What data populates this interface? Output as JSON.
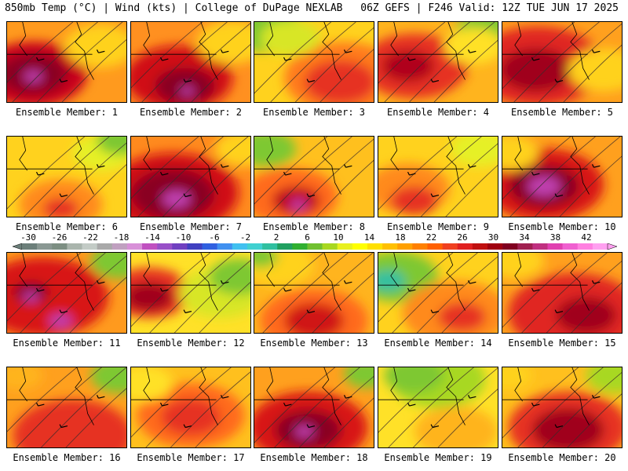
{
  "header": {
    "left": "850mb Temp (°C) | Wind (kts) | College of DuPage NEXLAB",
    "right": "06Z GEFS | F246 Valid: 12Z TUE JUN 17 2025"
  },
  "colorbar": {
    "labels": [
      "-30",
      "-26",
      "-22",
      "-18",
      "-14",
      "-10",
      "-6",
      "-2",
      "2",
      "6",
      "10",
      "14",
      "18",
      "22",
      "26",
      "30",
      "34",
      "38",
      "42"
    ],
    "colors": [
      "#6c7f7a",
      "#8a9893",
      "#7d8f83",
      "#aab5ad",
      "#c3cbc6",
      "#a9a9a9",
      "#c0a0c0",
      "#d890d8",
      "#c050c0",
      "#9850c8",
      "#7040c0",
      "#4040c0",
      "#3060e0",
      "#4090f0",
      "#40c0f0",
      "#40d0d0",
      "#30c0a0",
      "#20a060",
      "#30b030",
      "#70c030",
      "#a8d820",
      "#e8f020",
      "#ffff00",
      "#ffe000",
      "#ffc000",
      "#ffa000",
      "#ff8000",
      "#ff6000",
      "#f04020",
      "#e02020",
      "#c01010",
      "#a00010",
      "#800020",
      "#a02050",
      "#c03080",
      "#e040b0",
      "#f060d0",
      "#ff80e0",
      "#ffa0f0"
    ]
  },
  "members": [
    {
      "label": "Ensemble Member: 1",
      "base": "#ff9a1e",
      "hot": [
        [
          0.22,
          0.65,
          0.45,
          "#c8001a"
        ],
        [
          0.22,
          0.65,
          0.28,
          "#8a0020"
        ],
        [
          0.22,
          0.68,
          0.08,
          "#c040b0"
        ],
        [
          0.78,
          0.3,
          0.3,
          "#ffd21e"
        ]
      ]
    },
    {
      "label": "Ensemble Member: 2",
      "base": "#ff9020",
      "hot": [
        [
          0.4,
          0.7,
          0.45,
          "#d01018"
        ],
        [
          0.45,
          0.8,
          0.25,
          "#8a0020"
        ],
        [
          0.47,
          0.86,
          0.06,
          "#c040b0"
        ],
        [
          0.85,
          0.25,
          0.3,
          "#ffd21e"
        ]
      ]
    },
    {
      "label": "Ensemble Member: 3",
      "base": "#ffd21e",
      "hot": [
        [
          0.75,
          0.7,
          0.5,
          "#ff7a1e"
        ],
        [
          0.72,
          0.75,
          0.3,
          "#e63020"
        ],
        [
          0.1,
          0.1,
          0.3,
          "#7ec832"
        ],
        [
          0.3,
          0.2,
          0.25,
          "#d8e628"
        ]
      ]
    },
    {
      "label": "Ensemble Member: 4",
      "base": "#ffb41e",
      "hot": [
        [
          0.3,
          0.55,
          0.45,
          "#e63020"
        ],
        [
          0.25,
          0.55,
          0.22,
          "#b0001c"
        ],
        [
          0.9,
          0.1,
          0.25,
          "#7ec832"
        ],
        [
          0.8,
          0.3,
          0.25,
          "#ffe128"
        ]
      ]
    },
    {
      "label": "Ensemble Member: 5",
      "base": "#ffa01e",
      "hot": [
        [
          0.3,
          0.55,
          0.55,
          "#e02820"
        ],
        [
          0.28,
          0.6,
          0.3,
          "#a0001c"
        ],
        [
          0.85,
          0.6,
          0.3,
          "#ffd21e"
        ]
      ]
    },
    {
      "label": "Ensemble Member: 6",
      "base": "#ffd21e",
      "hot": [
        [
          0.45,
          0.85,
          0.35,
          "#ff8a1e"
        ],
        [
          0.45,
          0.9,
          0.15,
          "#e63020"
        ],
        [
          0.8,
          0.2,
          0.25,
          "#e6f028"
        ],
        [
          0.95,
          0.05,
          0.2,
          "#7ec832"
        ]
      ]
    },
    {
      "label": "Ensemble Member: 7",
      "base": "#ff8a1e",
      "hot": [
        [
          0.35,
          0.7,
          0.55,
          "#d01018"
        ],
        [
          0.35,
          0.72,
          0.35,
          "#8a0020"
        ],
        [
          0.38,
          0.78,
          0.12,
          "#c040b0"
        ],
        [
          0.95,
          0.15,
          0.25,
          "#ffd21e"
        ]
      ]
    },
    {
      "label": "Ensemble Member: 8",
      "base": "#ffc01e",
      "hot": [
        [
          0.3,
          0.75,
          0.4,
          "#ff6a1e"
        ],
        [
          0.35,
          0.8,
          0.2,
          "#c0001c"
        ],
        [
          0.37,
          0.85,
          0.07,
          "#c040b0"
        ],
        [
          0.1,
          0.15,
          0.25,
          "#7ec832"
        ]
      ]
    },
    {
      "label": "Ensemble Member: 9",
      "base": "#ffd21e",
      "hot": [
        [
          0.25,
          0.65,
          0.35,
          "#ff8a1e"
        ],
        [
          0.3,
          0.8,
          0.2,
          "#e63020"
        ],
        [
          0.85,
          0.15,
          0.25,
          "#e6f028"
        ]
      ]
    },
    {
      "label": "Ensemble Member: 10",
      "base": "#ffa01e",
      "hot": [
        [
          0.35,
          0.6,
          0.5,
          "#d81818"
        ],
        [
          0.35,
          0.62,
          0.3,
          "#8a0020"
        ],
        [
          0.35,
          0.62,
          0.14,
          "#c040b0"
        ],
        [
          0.05,
          0.2,
          0.25,
          "#ffd21e"
        ]
      ]
    },
    {
      "label": "Ensemble Member: 11",
      "base": "#ff9a1e",
      "hot": [
        [
          0.3,
          0.55,
          0.55,
          "#d81818"
        ],
        [
          0.2,
          0.5,
          0.15,
          "#8a0020"
        ],
        [
          0.2,
          0.55,
          0.07,
          "#c040b0"
        ],
        [
          0.45,
          0.85,
          0.1,
          "#c040b0"
        ],
        [
          0.95,
          0.1,
          0.25,
          "#7ec832"
        ]
      ]
    },
    {
      "label": "Ensemble Member: 12",
      "base": "#ffe128",
      "hot": [
        [
          0.15,
          0.5,
          0.35,
          "#e63020"
        ],
        [
          0.15,
          0.55,
          0.2,
          "#a0001c"
        ],
        [
          0.75,
          0.5,
          0.35,
          "#d8e628"
        ],
        [
          0.9,
          0.3,
          0.25,
          "#7ec832"
        ]
      ]
    },
    {
      "label": "Ensemble Member: 13",
      "base": "#ffb41e",
      "hot": [
        [
          0.5,
          0.85,
          0.45,
          "#ff6a1e"
        ],
        [
          0.5,
          0.85,
          0.25,
          "#d01818"
        ],
        [
          0.2,
          0.15,
          0.3,
          "#ffd21e"
        ],
        [
          0.05,
          0.05,
          0.15,
          "#7ec832"
        ]
      ]
    },
    {
      "label": "Ensemble Member: 14",
      "base": "#ffd21e",
      "hot": [
        [
          0.15,
          0.3,
          0.35,
          "#7ec832"
        ],
        [
          0.08,
          0.35,
          0.15,
          "#30c0a0"
        ],
        [
          0.65,
          0.75,
          0.45,
          "#ff8a1e"
        ],
        [
          0.7,
          0.8,
          0.2,
          "#e63020"
        ]
      ]
    },
    {
      "label": "Ensemble Member: 15",
      "base": "#ffa01e",
      "hot": [
        [
          0.6,
          0.75,
          0.55,
          "#e02820"
        ],
        [
          0.7,
          0.78,
          0.25,
          "#a0001c"
        ],
        [
          0.1,
          0.1,
          0.25,
          "#ffd21e"
        ]
      ]
    },
    {
      "label": "Ensemble Member: 16",
      "base": "#ffa01e",
      "hot": [
        [
          0.55,
          0.85,
          0.5,
          "#e63020"
        ],
        [
          0.95,
          0.1,
          0.25,
          "#7ec832"
        ],
        [
          0.1,
          0.1,
          0.2,
          "#ffb41e"
        ]
      ]
    },
    {
      "label": "Ensemble Member: 17",
      "base": "#ffc01e",
      "hot": [
        [
          0.5,
          0.6,
          0.45,
          "#ff6a1e"
        ],
        [
          0.5,
          0.62,
          0.25,
          "#e63020"
        ],
        [
          0.1,
          0.2,
          0.25,
          "#ffe128"
        ]
      ]
    },
    {
      "label": "Ensemble Member: 18",
      "base": "#ffa01e",
      "hot": [
        [
          0.45,
          0.75,
          0.5,
          "#d81818"
        ],
        [
          0.45,
          0.78,
          0.28,
          "#8a0020"
        ],
        [
          0.42,
          0.8,
          0.08,
          "#c040b0"
        ],
        [
          0.95,
          0.08,
          0.2,
          "#7ec832"
        ]
      ]
    },
    {
      "label": "Ensemble Member: 19",
      "base": "#ffe128",
      "hot": [
        [
          0.5,
          0.15,
          0.4,
          "#a8d820"
        ],
        [
          0.3,
          0.1,
          0.25,
          "#7ec832"
        ],
        [
          0.65,
          0.8,
          0.35,
          "#ffb41e"
        ]
      ]
    },
    {
      "label": "Ensemble Member: 20",
      "base": "#ffc01e",
      "hot": [
        [
          0.55,
          0.75,
          0.5,
          "#e63020"
        ],
        [
          0.55,
          0.78,
          0.3,
          "#a0001c"
        ],
        [
          0.95,
          0.1,
          0.25,
          "#a8d820"
        ],
        [
          0.05,
          0.1,
          0.2,
          "#ffd21e"
        ]
      ]
    }
  ]
}
